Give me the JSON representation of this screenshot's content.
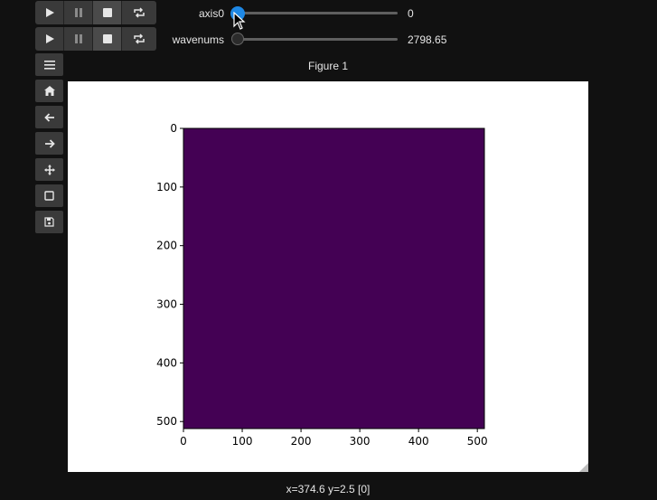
{
  "players": [
    {
      "buttons": [
        "play-icon",
        "pause-icon",
        "stop-icon",
        "repeat-icon"
      ]
    },
    {
      "buttons": [
        "play-icon",
        "pause-icon",
        "stop-icon",
        "repeat-icon"
      ]
    }
  ],
  "sliders": [
    {
      "label": "axis0",
      "value": "0",
      "fraction": 0.0,
      "accent": "#1e88e5"
    },
    {
      "label": "wavenums",
      "value": "2798.65",
      "fraction": 0.0,
      "accent": "#2b2b2b"
    }
  ],
  "toolbar": {
    "icons": [
      "menu-icon",
      "home-icon",
      "back-arrow-icon",
      "forward-arrow-icon",
      "pan-icon",
      "zoom-rect-icon",
      "save-icon"
    ]
  },
  "figure": {
    "title": "Figure 1",
    "status": "x=374.6 y=2.5 [0]"
  },
  "chart_data": {
    "type": "heatmap",
    "title": "",
    "xlabel": "",
    "ylabel": "",
    "xlim": [
      0,
      512
    ],
    "ylim": [
      512,
      0
    ],
    "xticks": [
      0,
      100,
      200,
      300,
      400,
      500
    ],
    "yticks": [
      0,
      100,
      200,
      300,
      400,
      500
    ],
    "values": [
      [
        0
      ]
    ],
    "colormap": "viridis",
    "fill_color": "#440154"
  }
}
